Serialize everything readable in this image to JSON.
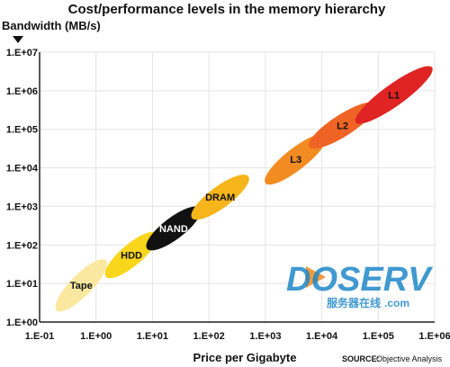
{
  "chart_data": {
    "type": "scatter",
    "title": "Cost/performance levels in the memory hierarchy",
    "ylabel": "Bandwidth (MB/s)",
    "xlabel": "Price per Gigabyte",
    "x_scale": "log",
    "y_scale": "log",
    "xlim": [
      0.1,
      1000000
    ],
    "ylim": [
      1,
      10000000
    ],
    "x_ticks": [
      "1.E-01",
      "1.E+00",
      "1.E+01",
      "1.E+02",
      "1.E+03",
      "1.E+04",
      "1.E+05",
      "1.E+06"
    ],
    "y_ticks": [
      "1.E+00",
      "1.E+01",
      "1.E+02",
      "1.E+03",
      "1.E+04",
      "1.E+05",
      "1.E+06",
      "1.E+07"
    ],
    "grid": true,
    "series": [
      {
        "name": "Tape",
        "x_range": [
          0.2,
          1.5
        ],
        "y_range": [
          2,
          40
        ],
        "color": "#fbe8a0",
        "label_color": "#111111"
      },
      {
        "name": "HDD",
        "x_range": [
          1.5,
          12
        ],
        "y_range": [
          15,
          200
        ],
        "color": "#f9d51c",
        "label_color": "#111111"
      },
      {
        "name": "NAND",
        "x_range": [
          8,
          70
        ],
        "y_range": [
          80,
          900
        ],
        "color": "#111111",
        "label_color": "#ffffff"
      },
      {
        "name": "DRAM",
        "x_range": [
          50,
          500
        ],
        "y_range": [
          500,
          6000
        ],
        "color": "#f5b51b",
        "label_color": "#111111"
      },
      {
        "name": "L3",
        "x_range": [
          1000,
          12000
        ],
        "y_range": [
          4000,
          70000
        ],
        "color": "#f28c22",
        "label_color": "#111111"
      },
      {
        "name": "L2",
        "x_range": [
          6000,
          90000
        ],
        "y_range": [
          35000,
          450000
        ],
        "color": "#ef6424",
        "label_color": "#111111"
      },
      {
        "name": "L1",
        "x_range": [
          40000,
          900000
        ],
        "y_range": [
          150000,
          4000000
        ],
        "color": "#e02423",
        "label_color": "#111111"
      }
    ]
  },
  "source": {
    "key": "SOURCE:",
    "value": "Objective Analysis"
  },
  "watermark": {
    "main": "DOSERV",
    "sub": "服务器在线",
    "domain": ".com"
  }
}
